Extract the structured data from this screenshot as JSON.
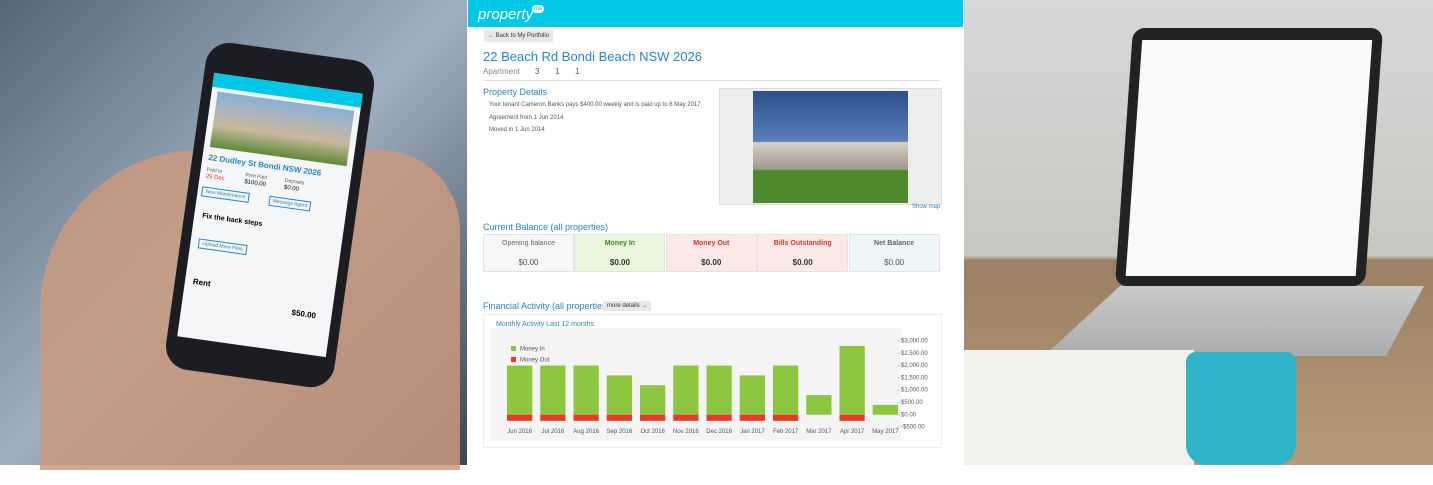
{
  "phone": {
    "address": "22 Dudley St Bondi NSW 2026",
    "paid_to": "Paid to",
    "paid_date": "29 Dec",
    "rent_paid": "Rent Paid",
    "rent_amount": "$100.00",
    "deposits": "Deposits",
    "deposit_amount": "$0.00",
    "new_maintenance": "New Maintenance",
    "message_agent": "Message Agent",
    "job": "Fix the back steps",
    "upload": "Upload More Files",
    "rent": "Rent",
    "rent_due": "$50.00"
  },
  "header": {
    "logo": "property",
    "logo_badge": "me"
  },
  "back_button": "← Back to My Portfolio",
  "property": {
    "title": "22 Beach Rd Bondi Beach NSW 2026",
    "type": "Apartment",
    "bedrooms": "3",
    "bathrooms": "1",
    "parking": "1"
  },
  "details": {
    "heading": "Property Details",
    "tenant_line": "Your tenant Cameron Banks pays $400.00 weekly and is paid up to 6 May 2017",
    "agreement": "Agreement from 1 Jun 2014",
    "moved_in": "Moved in 1 Jun 2014",
    "show_map": "Show map"
  },
  "balance": {
    "heading": "Current Balance (all properties)",
    "columns": [
      {
        "label": "Opening balance",
        "value": "$0.00"
      },
      {
        "label": "Money In",
        "value": "$0.00"
      },
      {
        "label": "Money Out",
        "value": "$0.00"
      },
      {
        "label": "Bills Outstanding",
        "value": "$0.00"
      },
      {
        "label": "Net Balance",
        "value": "$0.00"
      }
    ]
  },
  "activity": {
    "heading": "Financial Activity (all properties)",
    "more": "more details →"
  },
  "chart_data": {
    "type": "bar",
    "title": "Monthly Activity Last 12 months",
    "categories": [
      "Jun 2016",
      "Jul 2016",
      "Aug 2016",
      "Sep 2016",
      "Oct 2016",
      "Nov 2016",
      "Dec 2016",
      "Jan 2017",
      "Feb 2017",
      "Mar 2017",
      "Apr 2017",
      "May 2017"
    ],
    "series": [
      {
        "name": "Money In",
        "color": "#8cc63f",
        "values": [
          2000,
          2000,
          2000,
          1600,
          1200,
          2000,
          2000,
          1600,
          2000,
          800,
          2800,
          400
        ]
      },
      {
        "name": "Money Out",
        "color": "#e8392a",
        "values": [
          -250,
          -250,
          -250,
          -250,
          -250,
          -250,
          -250,
          -250,
          -250,
          0,
          -250,
          0
        ]
      }
    ],
    "ylim": [
      -500,
      3000
    ],
    "yticks": [
      {
        "value": 3000,
        "label": "$3,000.00"
      },
      {
        "value": 2500,
        "label": "$2,500.00"
      },
      {
        "value": 2000,
        "label": "$2,000.00"
      },
      {
        "value": 1500,
        "label": "$1,500.00"
      },
      {
        "value": 1000,
        "label": "$1,000.00"
      },
      {
        "value": 500,
        "label": "$500.00"
      },
      {
        "value": 0,
        "label": "$0.00"
      },
      {
        "value": -500,
        "label": "-$500.00"
      }
    ],
    "legend": "top-left",
    "grid": false
  }
}
